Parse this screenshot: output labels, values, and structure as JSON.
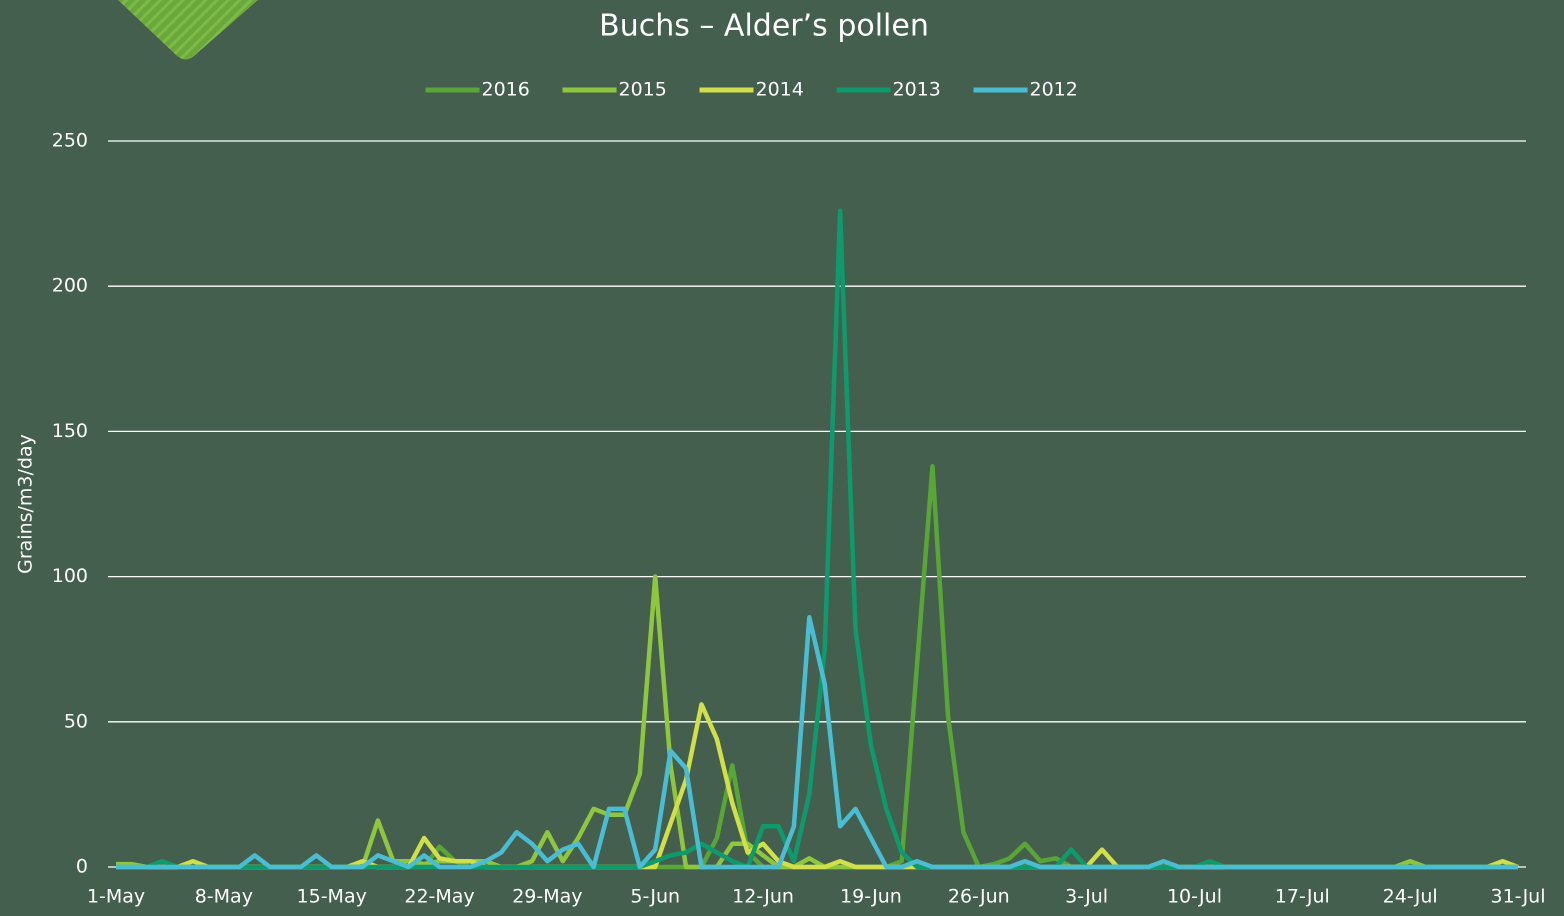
{
  "chart_data": {
    "type": "line",
    "title": "Buchs – Alder’s pollen",
    "y_label": "Grains/m3/day",
    "categories": [
      "1-May",
      null,
      null,
      null,
      null,
      null,
      null,
      "8-May",
      null,
      null,
      null,
      null,
      null,
      null,
      "15-May",
      null,
      null,
      null,
      null,
      null,
      null,
      "22-May",
      null,
      null,
      null,
      null,
      null,
      null,
      "29-May",
      null,
      null,
      null,
      null,
      null,
      null,
      "5-Jun",
      null,
      null,
      null,
      null,
      null,
      null,
      "12-Jun",
      null,
      null,
      null,
      null,
      null,
      null,
      "19-Jun",
      null,
      null,
      null,
      null,
      null,
      null,
      "26-Jun",
      null,
      null,
      null,
      null,
      null,
      null,
      "3-Jul",
      null,
      null,
      null,
      null,
      null,
      null,
      "10-Jul",
      null,
      null,
      null,
      null,
      null,
      null,
      "17-Jul",
      null,
      null,
      null,
      null,
      null,
      null,
      "24-Jul",
      null,
      null,
      null,
      null,
      null,
      null,
      "31-Jul"
    ],
    "series": [
      {
        "name": "2016",
        "color": "#5aa537",
        "values": [
          0,
          0,
          0,
          0,
          0,
          0,
          0,
          0,
          0,
          0,
          0,
          0,
          0,
          0,
          0,
          0,
          0,
          0,
          0,
          0,
          0,
          7,
          2,
          0,
          0,
          0,
          0,
          0,
          0,
          0,
          0,
          0,
          0,
          0,
          0,
          0,
          0,
          0,
          0,
          10,
          35,
          5,
          0,
          0,
          0,
          0,
          0,
          0,
          0,
          0,
          0,
          2,
          70,
          138,
          52,
          12,
          0,
          1,
          3,
          8,
          2,
          3,
          0,
          0,
          0,
          0,
          0,
          0,
          0,
          0,
          0,
          0,
          0,
          0,
          0,
          0,
          0,
          0,
          0,
          0,
          0,
          0,
          0,
          0,
          0,
          0,
          0,
          0,
          0,
          0,
          0,
          0
        ]
      },
      {
        "name": "2015",
        "color": "#8ec63f",
        "values": [
          1,
          1,
          0,
          0,
          0,
          0,
          0,
          0,
          0,
          0,
          0,
          0,
          0,
          0,
          0,
          0,
          0,
          16,
          2,
          2,
          1,
          2,
          2,
          2,
          2,
          0,
          0,
          2,
          12,
          2,
          10,
          20,
          18,
          18,
          32,
          100,
          35,
          0,
          0,
          0,
          8,
          8,
          4,
          0,
          0,
          3,
          0,
          0,
          0,
          0,
          0,
          0,
          0,
          0,
          0,
          0,
          0,
          0,
          0,
          0,
          0,
          0,
          0,
          0,
          0,
          0,
          0,
          0,
          0,
          0,
          0,
          0,
          0,
          0,
          0,
          0,
          0,
          0,
          0,
          0,
          0,
          0,
          0,
          0,
          2,
          0,
          0,
          0,
          0,
          0,
          0,
          0
        ]
      },
      {
        "name": "2014",
        "color": "#d0df4a",
        "values": [
          0,
          0,
          0,
          0,
          0,
          2,
          0,
          0,
          0,
          0,
          0,
          0,
          0,
          0,
          0,
          0,
          2,
          0,
          0,
          0,
          10,
          3,
          2,
          2,
          0,
          0,
          0,
          0,
          0,
          0,
          0,
          0,
          0,
          0,
          0,
          0,
          15,
          30,
          56,
          44,
          22,
          5,
          8,
          2,
          0,
          0,
          0,
          2,
          0,
          0,
          0,
          0,
          0,
          0,
          0,
          0,
          0,
          0,
          0,
          0,
          0,
          0,
          0,
          0,
          6,
          0,
          0,
          0,
          0,
          0,
          0,
          0,
          0,
          0,
          0,
          0,
          0,
          0,
          0,
          0,
          0,
          0,
          0,
          0,
          0,
          0,
          0,
          0,
          0,
          0,
          2,
          0
        ]
      },
      {
        "name": "2013",
        "color": "#0e9a6c",
        "values": [
          0,
          0,
          0,
          2,
          0,
          0,
          0,
          0,
          0,
          0,
          0,
          0,
          0,
          0,
          0,
          0,
          0,
          0,
          0,
          0,
          0,
          0,
          0,
          0,
          0,
          0,
          0,
          0,
          0,
          0,
          0,
          0,
          0,
          0,
          0,
          2,
          4,
          5,
          8,
          5,
          2,
          0,
          14,
          14,
          2,
          25,
          75,
          226,
          82,
          42,
          20,
          5,
          0,
          0,
          0,
          0,
          0,
          0,
          0,
          0,
          0,
          0,
          6,
          0,
          0,
          0,
          0,
          0,
          0,
          0,
          0,
          2,
          0,
          0,
          0,
          0,
          0,
          0,
          0,
          0,
          0,
          0,
          0,
          0,
          0,
          0,
          0,
          0,
          0,
          0,
          0,
          0
        ]
      },
      {
        "name": "2012",
        "color": "#4bbdd2",
        "values": [
          0,
          0,
          0,
          0,
          0,
          0,
          0,
          0,
          0,
          4,
          0,
          0,
          0,
          4,
          0,
          0,
          0,
          4,
          2,
          0,
          4,
          0,
          0,
          0,
          2,
          5,
          12,
          8,
          2,
          6,
          8,
          0,
          20,
          20,
          0,
          6,
          40,
          34,
          0,
          0,
          0,
          0,
          0,
          0,
          14,
          86,
          63,
          14,
          20,
          10,
          0,
          0,
          2,
          0,
          0,
          0,
          0,
          0,
          0,
          2,
          0,
          0,
          0,
          0,
          0,
          0,
          0,
          0,
          2,
          0,
          0,
          0,
          0,
          0,
          0,
          0,
          0,
          0,
          0,
          0,
          0,
          0,
          0,
          0,
          0,
          0,
          0,
          0,
          0,
          0,
          0,
          0
        ]
      }
    ],
    "ylim": [
      0,
      250
    ],
    "yticks": [
      0,
      50,
      100,
      150,
      200,
      250
    ],
    "grid": true,
    "legend": "top"
  }
}
